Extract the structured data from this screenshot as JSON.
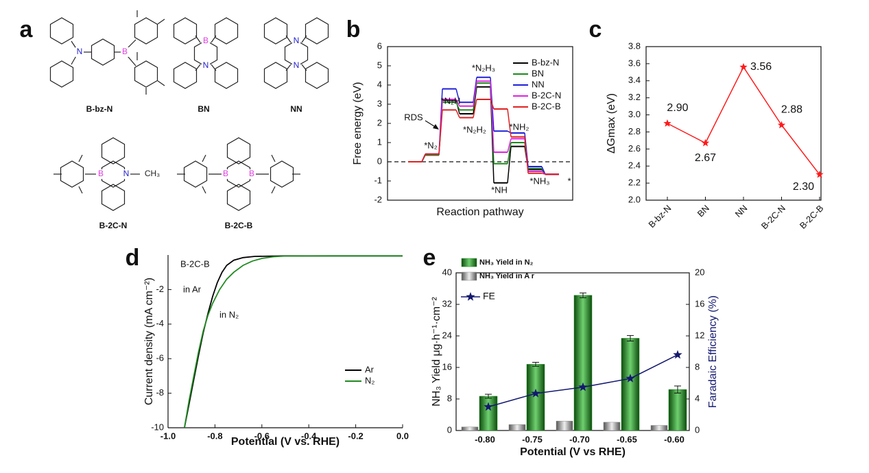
{
  "panel_labels": [
    "a",
    "b",
    "c",
    "d",
    "e"
  ],
  "molecules": [
    {
      "name": "B-bz-N",
      "atoms": [
        "N",
        "B"
      ]
    },
    {
      "name": "BN",
      "atoms": [
        "B",
        "N"
      ]
    },
    {
      "name": "NN",
      "atoms": [
        "N",
        "N"
      ]
    },
    {
      "name": "B-2C-N",
      "atoms": [
        "B",
        "N",
        "CH₃"
      ]
    },
    {
      "name": "B-2C-B",
      "atoms": [
        "B",
        "B"
      ]
    }
  ],
  "chart_data": [
    {
      "type": "step",
      "ylabel": "Free energy (eV)",
      "xlabel": "Reaction pathway",
      "ylim": [
        -2,
        6
      ],
      "yticks": [
        -2,
        -1,
        0,
        1,
        2,
        3,
        4,
        5,
        6
      ],
      "annotations": [
        "*N₂",
        "*N₂H",
        "*N₂H₂",
        "*N₂H₃",
        "*NH",
        "*NH₂",
        "*NH₃",
        "*",
        "RDS"
      ],
      "series": [
        {
          "name": "B-bz-N",
          "color": "#000000",
          "values": [
            0,
            0.35,
            3.2,
            2.5,
            3.9,
            -1.1,
            0.8,
            -0.4,
            -0.65
          ]
        },
        {
          "name": "BN",
          "color": "#1a8a1a",
          "values": [
            0,
            0.35,
            3.1,
            2.7,
            4.1,
            -0.1,
            1.0,
            -0.35,
            -0.65
          ]
        },
        {
          "name": "NN",
          "color": "#1f1fd8",
          "values": [
            0,
            0.4,
            3.8,
            3.1,
            4.4,
            1.6,
            1.5,
            -0.25,
            -0.65
          ]
        },
        {
          "name": "B-2C-N",
          "color": "#e020e0",
          "values": [
            0,
            0.4,
            3.25,
            2.9,
            4.2,
            0.5,
            1.2,
            -0.5,
            -0.65
          ]
        },
        {
          "name": "B-2C-B",
          "color": "#e02020",
          "values": [
            0,
            0.4,
            2.7,
            2.3,
            3.25,
            2.75,
            1.3,
            -0.6,
            -0.65
          ]
        }
      ]
    },
    {
      "type": "line",
      "ylabel": "ΔGmax (eV)",
      "categories": [
        "B-bz-N",
        "BN",
        "NN",
        "B-2C-N",
        "B-2C-B"
      ],
      "values": [
        2.9,
        2.67,
        3.56,
        2.88,
        2.3
      ],
      "value_labels": [
        "2.90",
        "2.67",
        "3.56",
        "2.88",
        "2.30"
      ],
      "color": "#ff1a1a",
      "ylim": [
        2.0,
        3.8
      ],
      "yticks": [
        {
          "value": 2,
          "label": "2.0"
        },
        2.2,
        2.4,
        2.6,
        2.8,
        {
          "value": 3,
          "label": "3.0"
        },
        3.2,
        3.4,
        3.6,
        3.8
      ]
    },
    {
      "type": "line",
      "xlabel": "Potential (V vs. RHE)",
      "ylabel": "Current density (mA cm⁻²)",
      "xlim": [
        -1,
        0
      ],
      "xticks": [
        {
          "value": -1,
          "label": "-1.0"
        },
        -0.8,
        -0.6,
        -0.4,
        -0.2,
        {
          "value": 0,
          "label": "0.0"
        }
      ],
      "ylim": [
        -10,
        0
      ],
      "yticks": [
        -10,
        -8,
        -6,
        -4,
        -2
      ],
      "annotations": [
        "B-2C-B",
        "in Ar",
        "in N₂"
      ],
      "series": [
        {
          "name": "Ar",
          "color": "#000000",
          "x": [
            -0.93,
            -0.91,
            -0.89,
            -0.87,
            -0.85,
            -0.83,
            -0.81,
            -0.79,
            -0.77,
            -0.75,
            -0.72,
            -0.68,
            -0.63,
            -0.5,
            -0.3,
            0
          ],
          "values": [
            -10,
            -8.6,
            -7.2,
            -5.8,
            -4.5,
            -3.4,
            -2.4,
            -1.6,
            -1.0,
            -0.6,
            -0.3,
            -0.15,
            -0.08,
            -0.05,
            -0.05,
            -0.05
          ]
        },
        {
          "name": "N₂",
          "color": "#1f8a1f",
          "x": [
            -0.93,
            -0.91,
            -0.89,
            -0.87,
            -0.85,
            -0.83,
            -0.81,
            -0.78,
            -0.75,
            -0.72,
            -0.68,
            -0.64,
            -0.6,
            -0.55,
            -0.5,
            -0.3,
            0
          ],
          "values": [
            -10,
            -8.4,
            -7.0,
            -5.6,
            -4.4,
            -3.5,
            -2.8,
            -2.0,
            -1.4,
            -1.0,
            -0.6,
            -0.35,
            -0.2,
            -0.1,
            -0.06,
            -0.05,
            -0.05
          ]
        }
      ]
    },
    {
      "type": "bar",
      "xlabel": "Potential (V vs RHE)",
      "ylabel": "NH₃ Yield μg·h⁻¹·cm⁻²",
      "y2label": "Faradaic Efficiency (%)",
      "categories": [
        "-0.80",
        "-0.75",
        "-0.70",
        "-0.65",
        "-0.60"
      ],
      "ylim": [
        0,
        40
      ],
      "yticks": [
        0,
        8,
        16,
        24,
        32,
        40
      ],
      "y2lim": [
        0,
        20
      ],
      "y2ticks": [
        0,
        4,
        8,
        12,
        16,
        20
      ],
      "series": [
        {
          "name": "NH₃ Yield in N₂",
          "color": "#1e8c1e",
          "values": [
            8.7,
            16.8,
            34.3,
            23.4,
            10.4
          ],
          "errors": [
            0.5,
            0.5,
            0.6,
            0.7,
            0.9
          ]
        },
        {
          "name": "NH₃ Yield in A r",
          "color": "#8a8a8a",
          "values": [
            0.9,
            1.5,
            2.4,
            2.1,
            1.3
          ]
        },
        {
          "name": "FE",
          "color": "#14196e",
          "axis": "y2",
          "values": [
            3.0,
            4.7,
            5.5,
            6.6,
            9.6
          ]
        }
      ]
    }
  ]
}
